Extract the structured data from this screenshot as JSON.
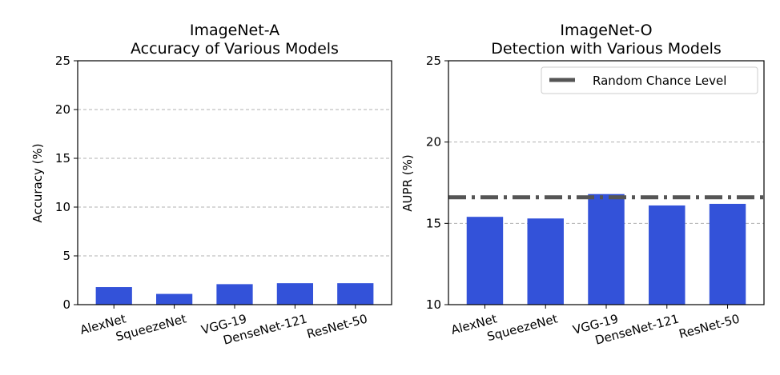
{
  "chart_data": [
    {
      "type": "bar",
      "title_line1": "ImageNet-A",
      "title_line2": "Accuracy of Various Models",
      "ylabel": "Accuracy (%)",
      "ylim": [
        0,
        25
      ],
      "yticks": [
        0,
        5,
        10,
        15,
        20,
        25
      ],
      "grid": true,
      "bar_color": "#3352d9",
      "categories": [
        "AlexNet",
        "SqueezeNet",
        "VGG-19",
        "DenseNet-121",
        "ResNet-50"
      ],
      "values": [
        1.8,
        1.1,
        2.1,
        2.2,
        2.2
      ]
    },
    {
      "type": "bar",
      "title_line1": "ImageNet-O",
      "title_line2": "Detection with Various Models",
      "ylabel": "AUPR (%)",
      "ylim": [
        10,
        25
      ],
      "yticks": [
        10,
        15,
        20,
        25
      ],
      "grid": true,
      "bar_color": "#3352d9",
      "categories": [
        "AlexNet",
        "SqueezeNet",
        "VGG-19",
        "DenseNet-121",
        "ResNet-50"
      ],
      "values": [
        15.4,
        15.3,
        16.8,
        16.1,
        16.2
      ],
      "reference_line": {
        "value": 16.6,
        "label": "Random Chance Level",
        "color": "#555555"
      },
      "legend_position": "top-right"
    }
  ]
}
